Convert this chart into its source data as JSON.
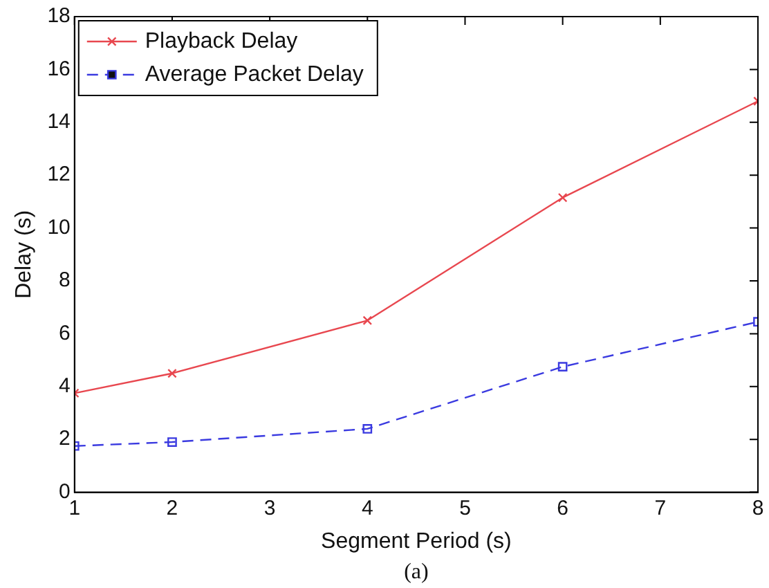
{
  "chart_data": {
    "type": "line",
    "xlabel": "Segment Period (s)",
    "ylabel": "Delay (s)",
    "x": [
      1,
      2,
      4,
      6,
      8
    ],
    "series": [
      {
        "name": "Playback Delay",
        "color": "#e8474f",
        "values": [
          3.75,
          4.5,
          6.5,
          11.15,
          14.8
        ],
        "marker": "cross",
        "line_style": "solid"
      },
      {
        "name": "Average Packet Delay",
        "color": "#3a3ae0",
        "values": [
          1.75,
          1.9,
          2.4,
          4.75,
          6.45
        ],
        "marker": "square",
        "line_style": "dashed"
      }
    ],
    "xlim": [
      1,
      8
    ],
    "xticks": [
      1,
      2,
      3,
      4,
      5,
      6,
      7,
      8
    ],
    "ylim": [
      0,
      18
    ],
    "yticks": [
      0,
      2,
      4,
      6,
      8,
      10,
      12,
      14,
      16,
      18
    ],
    "grid": false,
    "legend": "top left",
    "annotations": [
      "(a)"
    ]
  }
}
